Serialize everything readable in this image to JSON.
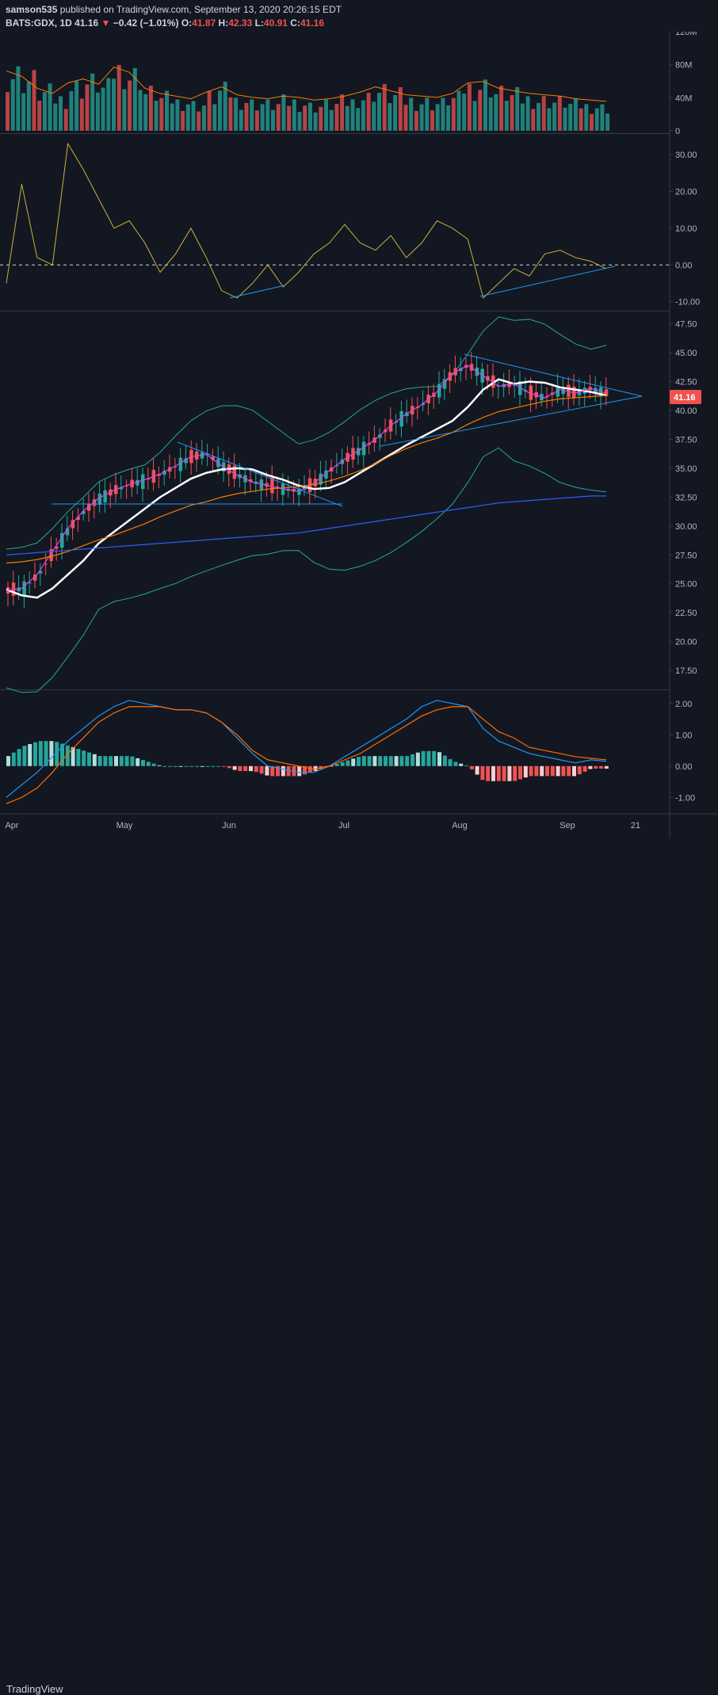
{
  "header": {
    "user": "samson535",
    "published": "published on TradingView.com, September 13, 2020 20:26:15 EDT",
    "symbol": "BATS:GDX, 1D",
    "last": "41.16",
    "change_arrow": "▼",
    "change": "−0.42 (−1.01%)",
    "o_label": "O:",
    "o": "41.87",
    "h_label": "H:",
    "h": "42.33",
    "l_label": "L:",
    "l": "40.91",
    "c_label": "C:",
    "c": "41.16"
  },
  "footer": {
    "brand": "TradingView"
  },
  "colors": {
    "background": "#131722",
    "up": "#26a69a",
    "down": "#ef5350",
    "ma_white": "#ffffff",
    "ma_purple": "#e040fb",
    "ma_orange": "#f57c00",
    "ma_blue": "#2962ff",
    "bollinger": "#26a69a",
    "trendline": "#2196f3",
    "momentum": "#c9b23a",
    "macd": "#2196f3",
    "signal": "#ff6d00"
  },
  "chart_data": [
    {
      "type": "bar",
      "panel": "volume",
      "y_ticks": [
        "120M",
        "80M",
        "40M",
        "0"
      ],
      "ylim": [
        0,
        120
      ]
    },
    {
      "type": "line",
      "panel": "momentum",
      "y_ticks": [
        "30.00",
        "20.00",
        "10.00",
        "0.00",
        "-10.00"
      ],
      "ylim": [
        -12,
        35
      ],
      "zero_line": "dashed"
    },
    {
      "type": "candlestick",
      "panel": "price",
      "y_ticks": [
        "47.50",
        "45.00",
        "42.50",
        "40.00",
        "37.50",
        "35.00",
        "32.50",
        "30.00",
        "27.50",
        "25.00",
        "22.50",
        "20.00",
        "17.50"
      ],
      "ylim": [
        16,
        48.5
      ],
      "last_price": "41.16",
      "x_ticks": [
        "Apr",
        "May",
        "Jun",
        "Jul",
        "Aug",
        "Sep",
        "21"
      ],
      "series": [
        {
          "name": "",
          "color": "#ffffff",
          "values": [
            24.5,
            24.0,
            23.8,
            24.6,
            25.8,
            27.0,
            28.5,
            29.5,
            30.5,
            31.5,
            32.5,
            33.3,
            34.1,
            34.6,
            34.9,
            35.0,
            34.9,
            34.4,
            34.0,
            33.5,
            33.2,
            33.3,
            33.8,
            34.6,
            35.4,
            36.2,
            37.0,
            37.7,
            38.4,
            39.1,
            40.3,
            41.8,
            42.7,
            42.3,
            42.5,
            42.4,
            42.0,
            41.8,
            41.6,
            41.3
          ]
        },
        {
          "name": "",
          "color": "#e040fb",
          "values": [
            24.4,
            24.6,
            25.8,
            27.8,
            29.8,
            31.3,
            32.4,
            33.1,
            33.6,
            34.0,
            34.5,
            35.2,
            36.0,
            36.2,
            35.2,
            34.4,
            33.8,
            33.5,
            33.2,
            33.0,
            33.7,
            34.8,
            35.8,
            36.6,
            37.5,
            38.7,
            39.7,
            40.5,
            41.6,
            43.2,
            43.9,
            43.0,
            42.1,
            42.3,
            41.5,
            41.1,
            41.8,
            41.5,
            41.9,
            41.5
          ]
        },
        {
          "name": "",
          "color": "#f57c00",
          "values": [
            26.8,
            26.9,
            27.1,
            27.4,
            27.8,
            28.3,
            28.8,
            29.2,
            29.7,
            30.2,
            30.8,
            31.3,
            31.8,
            32.1,
            32.5,
            32.8,
            33.0,
            33.2,
            33.3,
            33.4,
            33.6,
            33.9,
            34.3,
            34.8,
            35.4,
            36.1,
            36.7,
            37.2,
            37.6,
            38.1,
            38.8,
            39.4,
            39.9,
            40.2,
            40.5,
            40.8,
            41.0,
            41.1,
            41.2,
            41.3
          ]
        },
        {
          "name": "",
          "color": "#2962ff",
          "values": [
            27.5,
            27.6,
            27.7,
            27.8,
            27.9,
            28.0,
            28.1,
            28.2,
            28.3,
            28.4,
            28.5,
            28.6,
            28.7,
            28.8,
            28.9,
            29.0,
            29.1,
            29.2,
            29.3,
            29.4,
            29.6,
            29.8,
            30.0,
            30.2,
            30.4,
            30.6,
            30.8,
            31.0,
            31.2,
            31.4,
            31.6,
            31.8,
            32.0,
            32.1,
            32.2,
            32.3,
            32.4,
            32.5,
            32.6,
            32.6
          ]
        }
      ]
    },
    {
      "type": "line",
      "panel": "macd",
      "y_ticks": [
        "2.00",
        "1.00",
        "0.00",
        "-1.00"
      ],
      "ylim": [
        -1.5,
        2.4
      ],
      "series": [
        {
          "name": "",
          "color": "#2196f3",
          "values": [
            -1.0,
            -0.6,
            -0.2,
            0.3,
            0.8,
            1.2,
            1.6,
            1.9,
            2.1,
            2.0,
            1.9,
            1.8,
            1.8,
            1.7,
            1.4,
            0.9,
            0.4,
            0.0,
            -0.1,
            -0.2,
            -0.2,
            0.0,
            0.3,
            0.6,
            0.9,
            1.2,
            1.5,
            1.9,
            2.1,
            2.0,
            1.9,
            1.2,
            0.8,
            0.6,
            0.4,
            0.3,
            0.2,
            0.1,
            0.2,
            0.15
          ]
        },
        {
          "name": "",
          "color": "#ff6d00",
          "values": [
            -1.2,
            -1.0,
            -0.7,
            -0.2,
            0.4,
            0.9,
            1.4,
            1.7,
            1.9,
            1.9,
            1.9,
            1.8,
            1.8,
            1.7,
            1.4,
            1.0,
            0.5,
            0.2,
            0.1,
            0.0,
            -0.1,
            0.0,
            0.2,
            0.4,
            0.7,
            1.0,
            1.3,
            1.6,
            1.8,
            1.9,
            1.9,
            1.5,
            1.1,
            0.9,
            0.6,
            0.5,
            0.4,
            0.3,
            0.25,
            0.2
          ]
        }
      ]
    }
  ]
}
